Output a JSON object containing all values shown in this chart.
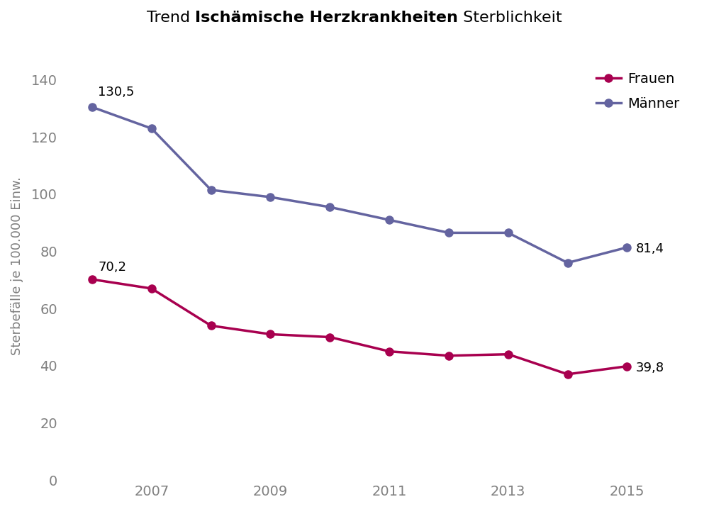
{
  "years": [
    2006,
    2007,
    2008,
    2009,
    2010,
    2011,
    2012,
    2013,
    2014,
    2015
  ],
  "frauen": [
    70.2,
    67.0,
    54.0,
    51.0,
    50.0,
    45.0,
    43.5,
    44.0,
    37.0,
    39.8
  ],
  "maenner": [
    130.5,
    123.0,
    101.5,
    99.0,
    95.5,
    91.0,
    86.5,
    86.5,
    76.0,
    81.4
  ],
  "frauen_color": "#a8004f",
  "maenner_color": "#6464a0",
  "frauen_label": "Frauen",
  "maenner_label": "Männer",
  "xticks": [
    2007,
    2009,
    2011,
    2013,
    2015
  ],
  "yticks": [
    0,
    20,
    40,
    60,
    80,
    100,
    120,
    140
  ],
  "ylim": [
    0,
    150
  ],
  "xlim": [
    2005.5,
    2016.2
  ],
  "ylabel": "Sterbefälle je 100.000 Einw.",
  "title_normal1": "Trend ",
  "title_bold": "Ischämische Herzkrankheiten",
  "title_normal2": " Sterblichkeit",
  "ann_maenner_x0": 2006,
  "ann_maenner_y0": 130.5,
  "ann_maenner_text0": "130,5",
  "ann_maenner_x1": 2015,
  "ann_maenner_y1": 81.4,
  "ann_maenner_text1": "81,4",
  "ann_frauen_x0": 2006,
  "ann_frauen_y0": 70.2,
  "ann_frauen_text0": "70,2",
  "ann_frauen_x1": 2015,
  "ann_frauen_y1": 39.8,
  "ann_frauen_text1": "39,8",
  "marker_size": 8,
  "line_width": 2.5,
  "bg_color": "#ffffff",
  "tick_color": "#808080",
  "ann_fontsize": 13,
  "tick_fontsize": 14,
  "ylabel_fontsize": 13,
  "legend_fontsize": 14,
  "title_fontsize": 16
}
